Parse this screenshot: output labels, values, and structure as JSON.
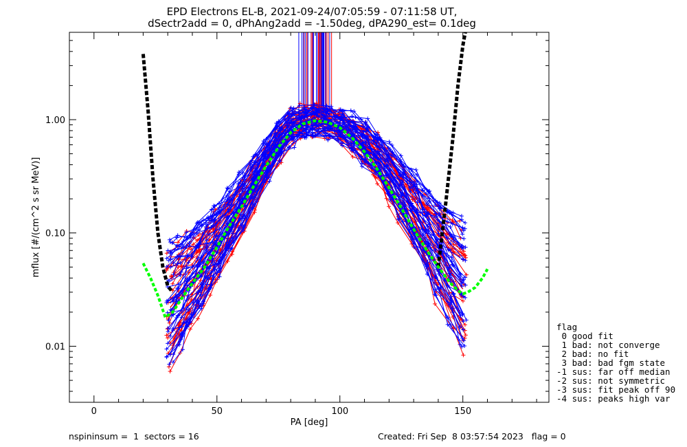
{
  "title_line1": "EPD Electrons EL-B, 2021-09-24/07:05:59 - 07:11:58 UT,",
  "title_line2": "dSectr2add = 0, dPhAng2add = -1.50deg, dPA290_est=   0.1deg",
  "footer": {
    "left": "nspininsum =  1  sectors = 16",
    "right": "Created: Fri Sep  8 03:57:54 2023   flag = 0"
  },
  "legend": {
    "title": "flag",
    "items": [
      " 0 good fit",
      " 1 bad: not converge",
      " 2 bad: no fit",
      " 3 bad: bad fgm state",
      "-1 sus: far off median",
      "-2 sus: not symmetric",
      "-3 sus: fit peak off 90",
      "-4 sus: peaks high var"
    ]
  },
  "colors": {
    "red_series": "#ff0000",
    "blue_series": "#0000ff",
    "black_fit": "#000000",
    "green_fit": "#00ff00"
  },
  "chart_data": {
    "type": "line",
    "xlabel": "PA [deg]",
    "ylabel": "mflux [#/(cm^2 s sr MeV)]",
    "xlim": [
      -10,
      185
    ],
    "ylim": [
      0.0032,
      5.9
    ],
    "yscale": "log",
    "x_ticks": [
      0,
      50,
      100,
      150
    ],
    "x_tick_labels": [
      "0",
      "50",
      "100",
      "150"
    ],
    "y_ticks": [
      0.01,
      0.1,
      1.0
    ],
    "y_tick_labels": [
      "0.01",
      "0.10",
      "1.00"
    ],
    "grid": false,
    "legend_position": "right-outside-bottom",
    "series": [
      {
        "color": "red",
        "description": "many sector traces (red)",
        "x": [
          31,
          35,
          39,
          43,
          47,
          50,
          55,
          60,
          65,
          70,
          75,
          80,
          85,
          90,
          95,
          100,
          105,
          110,
          115,
          120,
          125,
          130,
          135,
          140,
          145,
          150
        ],
        "y": [
          0.022,
          0.028,
          0.036,
          0.046,
          0.06,
          0.075,
          0.11,
          0.17,
          0.26,
          0.4,
          0.6,
          0.85,
          0.95,
          0.98,
          0.94,
          0.86,
          0.74,
          0.6,
          0.45,
          0.32,
          0.22,
          0.15,
          0.1,
          0.068,
          0.045,
          0.032
        ]
      },
      {
        "color": "blue",
        "description": "many sector traces (blue)",
        "x": [
          31,
          35,
          39,
          43,
          47,
          50,
          55,
          60,
          65,
          70,
          75,
          80,
          85,
          90,
          95,
          100,
          105,
          110,
          115,
          120,
          125,
          130,
          135,
          140,
          145,
          150
        ],
        "y": [
          0.024,
          0.03,
          0.04,
          0.052,
          0.068,
          0.085,
          0.125,
          0.19,
          0.29,
          0.44,
          0.64,
          0.86,
          0.95,
          0.98,
          0.95,
          0.88,
          0.77,
          0.63,
          0.48,
          0.35,
          0.24,
          0.16,
          0.11,
          0.075,
          0.05,
          0.036
        ]
      },
      {
        "color": "black",
        "description": "dashed fit (loss cone)",
        "x": [
          20,
          22,
          24,
          26,
          28,
          30,
          32,
          140,
          143,
          146,
          148,
          150,
          151
        ],
        "y": [
          3.8,
          1.2,
          0.3,
          0.1,
          0.05,
          0.034,
          0.03,
          0.05,
          0.18,
          0.7,
          2.0,
          4.5,
          5.9
        ]
      },
      {
        "color": "green",
        "description": "dashed fit",
        "x": [
          20,
          23,
          26,
          29,
          32,
          36,
          40,
          45,
          50,
          55,
          60,
          65,
          70,
          75,
          80,
          85,
          90,
          95,
          100,
          105,
          110,
          115,
          120,
          125,
          130,
          135,
          140,
          145,
          148,
          150,
          152,
          155,
          158,
          160
        ],
        "y": [
          0.054,
          0.04,
          0.028,
          0.018,
          0.02,
          0.027,
          0.036,
          0.05,
          0.075,
          0.115,
          0.17,
          0.26,
          0.39,
          0.57,
          0.77,
          0.92,
          0.98,
          0.95,
          0.85,
          0.69,
          0.52,
          0.37,
          0.25,
          0.165,
          0.108,
          0.072,
          0.05,
          0.036,
          0.031,
          0.029,
          0.03,
          0.033,
          0.04,
          0.048
        ]
      }
    ]
  }
}
